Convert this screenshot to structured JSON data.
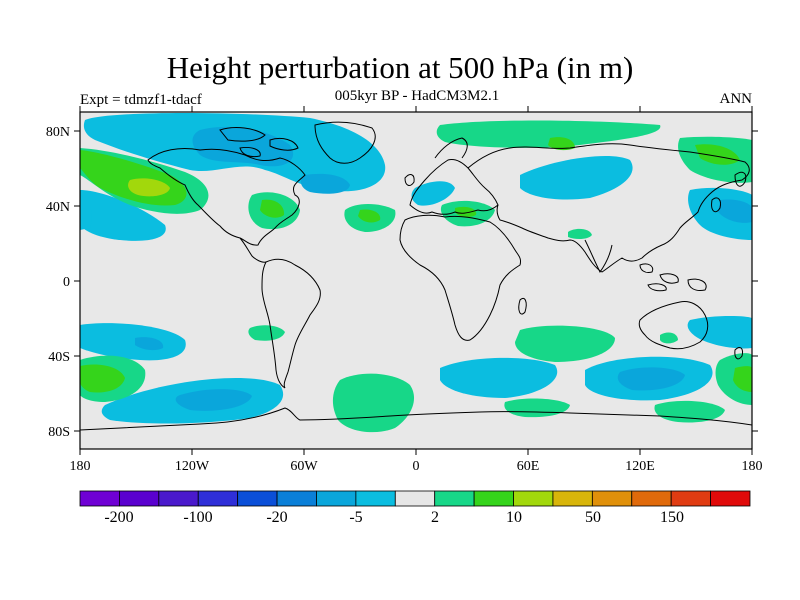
{
  "map": {
    "title": "Height perturbation at 500 hPa (in m)",
    "subtitle": "005kyr BP - HadCM3M2.1",
    "left_label": "Expt = tdmzf1-tdacf",
    "right_label": "ANN",
    "lat_ticks": [
      "80N",
      "40N",
      "0",
      "40S",
      "80S"
    ],
    "lon_ticks": [
      "180",
      "120W",
      "60W",
      "0",
      "60E",
      "120E",
      "180"
    ],
    "background_color": "#e8e8e8",
    "coastline_color": "#000000"
  },
  "colorbar": {
    "colors": [
      "#6f00d4",
      "#5a00cf",
      "#4a19cc",
      "#2f2fd8",
      "#0b4fd8",
      "#0a7fd8",
      "#0aa6db",
      "#0bbde0",
      "#e6e6e6",
      "#17d788",
      "#35d41b",
      "#a2d80c",
      "#d8b50a",
      "#e0900a",
      "#e06a0b",
      "#e03c12",
      "#e00a0a"
    ],
    "labels": [
      "-200",
      "-100",
      "-20",
      "-5",
      "2",
      "10",
      "50",
      "150"
    ]
  },
  "regions": [
    {
      "name": "north-pacific-positive",
      "level": "2"
    },
    {
      "name": "north-pacific-core",
      "level": "10"
    },
    {
      "name": "arctic-canada-negative",
      "level": "-5"
    },
    {
      "name": "north-atlantic-negative",
      "level": "-5"
    },
    {
      "name": "siberia-negative",
      "level": "-5"
    },
    {
      "name": "arctic-positive",
      "level": "2"
    },
    {
      "name": "southern-ocean-negative",
      "level": "-5"
    },
    {
      "name": "southern-ocean-positive",
      "level": "2"
    },
    {
      "name": "south-indian-negative-core",
      "level": "-20"
    },
    {
      "name": "south-pacific-positive-core",
      "level": "10"
    }
  ]
}
